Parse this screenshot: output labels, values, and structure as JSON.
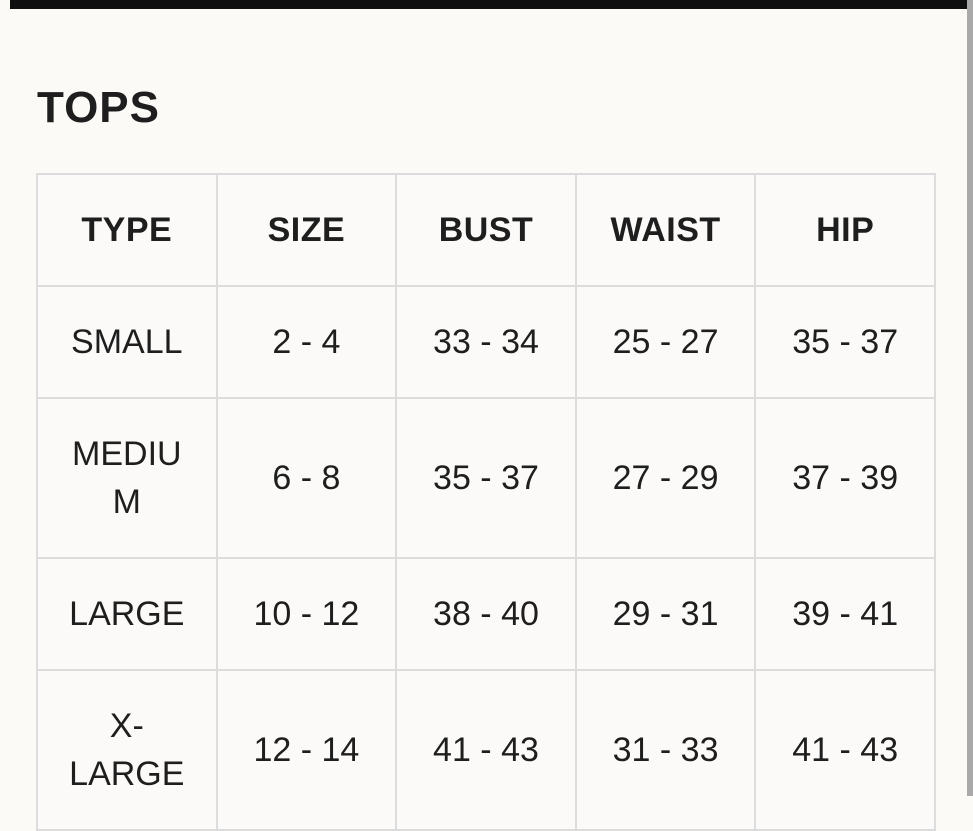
{
  "page": {
    "title": "TOPS",
    "colors": {
      "background": "#fbfaf7",
      "cell_bg": "#fbfaf8",
      "top_bar": "#0f0f0f",
      "scrollbar": "#a9a9a9",
      "text": "#1e1e1e",
      "border": "#dcdcdc"
    }
  },
  "size_chart": {
    "columns": [
      "TYPE",
      "SIZE",
      "BUST",
      "WAIST",
      "HIP"
    ],
    "rows": [
      {
        "type": "SMALL",
        "size": "2 - 4",
        "bust": "33 - 34",
        "waist": "25 - 27",
        "hip": "35 - 37"
      },
      {
        "type": "MEDIUM",
        "size": "6 - 8",
        "bust": "35 - 37",
        "waist": "27 - 29",
        "hip": "37 - 39"
      },
      {
        "type": "LARGE",
        "size": "10 - 12",
        "bust": "38 - 40",
        "waist": "29 - 31",
        "hip": "39 - 41"
      },
      {
        "type": "X-LARGE",
        "size": "12 - 14",
        "bust": "41 - 43",
        "waist": "31 - 33",
        "hip": "41 - 43"
      }
    ]
  }
}
